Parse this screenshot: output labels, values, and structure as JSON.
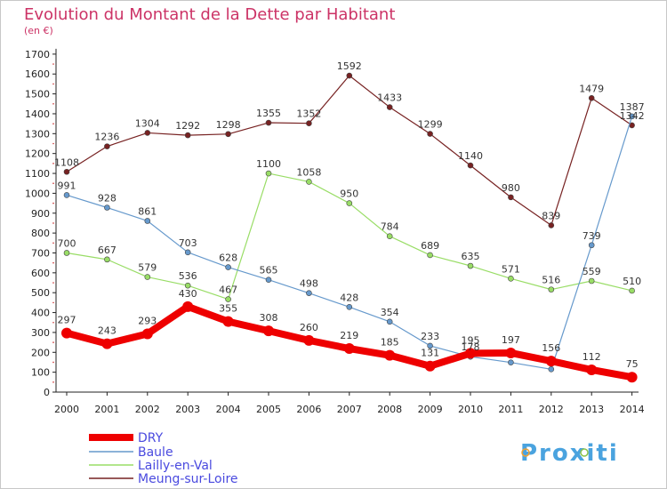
{
  "header": {
    "title": "Evolution du Montant de la Dette par Habitant",
    "unit": "(en €)"
  },
  "logo": {
    "text": "Proxiti"
  },
  "chart_data": {
    "type": "line",
    "title": "Evolution du Montant de la Dette par Habitant",
    "subtitle": "(en €)",
    "xlabel": "",
    "ylabel": "",
    "ylim": [
      0,
      1700
    ],
    "yticks": [
      0,
      100,
      200,
      300,
      400,
      500,
      600,
      700,
      800,
      900,
      1000,
      1100,
      1200,
      1300,
      1400,
      1500,
      1600,
      1700
    ],
    "categories": [
      "2000",
      "2001",
      "2002",
      "2003",
      "2004",
      "2005",
      "2006",
      "2007",
      "2008",
      "2009",
      "2010",
      "2011",
      "2012",
      "2013",
      "2014"
    ],
    "grid": false,
    "legend_position": "bottom-left",
    "series": [
      {
        "name": "DRY",
        "color": "#ee0000",
        "values": [
          297,
          243,
          293,
          430,
          355,
          308,
          260,
          219,
          185,
          131,
          195,
          197,
          156,
          112,
          75
        ]
      },
      {
        "name": "Baule",
        "color": "#6699cc",
        "values": [
          991,
          928,
          861,
          703,
          628,
          565,
          498,
          428,
          354,
          233,
          178,
          149,
          115,
          739,
          1387
        ]
      },
      {
        "name": "Lailly-en-Val",
        "color": "#99dd66",
        "values": [
          700,
          667,
          579,
          536,
          467,
          1100,
          1058,
          950,
          784,
          689,
          635,
          571,
          516,
          559,
          510
        ]
      },
      {
        "name": "Meung-sur-Loire",
        "color": "#772222",
        "values": [
          1108,
          1236,
          1304,
          1292,
          1298,
          1355,
          1352,
          1592,
          1433,
          1299,
          1140,
          980,
          839,
          1479,
          1342
        ]
      }
    ],
    "point_labels": {
      "DRY": [
        "297",
        "243",
        "293",
        "430",
        "355",
        "308",
        "260",
        "219",
        "185",
        "131",
        "195",
        "197",
        "156",
        "112",
        "75"
      ],
      "Baule": [
        "991",
        "928",
        "861",
        "703",
        "628",
        "565",
        "498",
        "428",
        "354",
        "233",
        "178",
        "",
        "",
        "739",
        "1387"
      ],
      "Lailly-en-Val": [
        "700",
        "667",
        "579",
        "536",
        "467",
        "1100",
        "1058",
        "950",
        "784",
        "689",
        "635",
        "571",
        "516",
        "559",
        "510"
      ],
      "Meung-sur-Loire": [
        "1108",
        "1236",
        "1304",
        "1292",
        "1298",
        "1355",
        "1352",
        "1592",
        "1433",
        "1299",
        "1140",
        "980",
        "839",
        "1479",
        "1342"
      ]
    }
  }
}
